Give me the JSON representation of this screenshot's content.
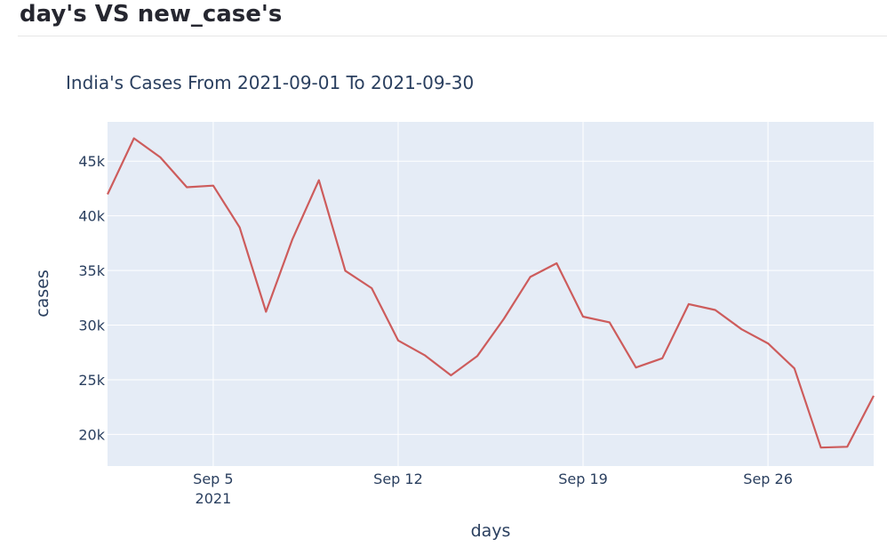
{
  "page": {
    "heading": "day's VS new_case's"
  },
  "chart_data": {
    "type": "line",
    "title": "India's Cases From 2021-09-01 To 2021-09-30",
    "xlabel": "days",
    "ylabel": "cases",
    "x_range": [
      "2021-09-01",
      "2021-09-30"
    ],
    "ylim": [
      17100,
      48600
    ],
    "x_ticks": [
      {
        "date": "2021-09-05",
        "label": "Sep 5",
        "sublabel": "2021"
      },
      {
        "date": "2021-09-12",
        "label": "Sep 12",
        "sublabel": ""
      },
      {
        "date": "2021-09-19",
        "label": "Sep 19",
        "sublabel": ""
      },
      {
        "date": "2021-09-26",
        "label": "Sep 26",
        "sublabel": ""
      }
    ],
    "y_ticks": [
      {
        "value": 20000,
        "label": "20k"
      },
      {
        "value": 25000,
        "label": "25k"
      },
      {
        "value": 30000,
        "label": "30k"
      },
      {
        "value": 35000,
        "label": "35k"
      },
      {
        "value": 40000,
        "label": "40k"
      },
      {
        "value": 45000,
        "label": "45k"
      }
    ],
    "grid": true,
    "colors": {
      "line": "#cd5c5c",
      "plot_bg": "#e5ecf6",
      "grid": "#ffffff",
      "text": "#2a3f5f"
    },
    "series": [
      {
        "x": [
          "2021-09-01",
          "2021-09-02",
          "2021-09-03",
          "2021-09-04",
          "2021-09-05",
          "2021-09-06",
          "2021-09-07",
          "2021-09-08",
          "2021-09-09",
          "2021-09-10",
          "2021-09-11",
          "2021-09-12",
          "2021-09-13",
          "2021-09-14",
          "2021-09-15",
          "2021-09-16",
          "2021-09-17",
          "2021-09-18",
          "2021-09-19",
          "2021-09-20",
          "2021-09-21",
          "2021-09-22",
          "2021-09-23",
          "2021-09-24",
          "2021-09-25",
          "2021-09-26",
          "2021-09-27",
          "2021-09-28",
          "2021-09-29",
          "2021-09-30"
        ],
        "y": [
          41965,
          47092,
          45352,
          42618,
          42766,
          38948,
          31222,
          37875,
          43263,
          34973,
          33376,
          28591,
          27254,
          25404,
          27176,
          30570,
          34403,
          35662,
          30773,
          30256,
          26115,
          26964,
          31923,
          31382,
          29616,
          28326,
          26041,
          18795,
          18870,
          23529
        ]
      }
    ]
  }
}
